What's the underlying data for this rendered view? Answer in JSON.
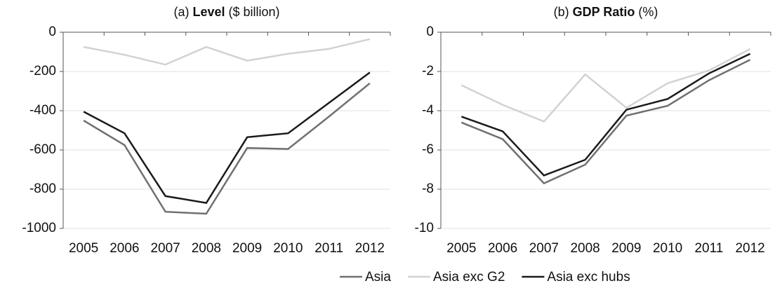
{
  "chart_data": [
    {
      "type": "line",
      "title_prefix": "(a) ",
      "title_bold": "Level",
      "title_suffix": " ($ billion)",
      "categories": [
        "2005",
        "2006",
        "2007",
        "2008",
        "2009",
        "2010",
        "2011",
        "2012"
      ],
      "series": [
        {
          "name": "Asia",
          "color": "#707070",
          "values": [
            -450,
            -575,
            -915,
            -925,
            -590,
            -595,
            -430,
            -260
          ]
        },
        {
          "name": "Asia exc G2",
          "color": "#d2d2d2",
          "values": [
            -75,
            -115,
            -165,
            -75,
            -145,
            -110,
            -85,
            -35
          ]
        },
        {
          "name": "Asia exc hubs",
          "color": "#1a1a1a",
          "values": [
            -405,
            -515,
            -835,
            -870,
            -535,
            -515,
            -360,
            -205
          ]
        }
      ],
      "ylim": [
        -1000,
        0
      ],
      "yticks": [
        -1000,
        -800,
        -600,
        -400,
        -200,
        0
      ],
      "grid": true
    },
    {
      "type": "line",
      "title_prefix": "(b) ",
      "title_bold": "GDP Ratio",
      "title_suffix": " (%)",
      "categories": [
        "2005",
        "2006",
        "2007",
        "2008",
        "2009",
        "2010",
        "2011",
        "2012"
      ],
      "series": [
        {
          "color": "#707070",
          "values": [
            -4.6,
            -5.45,
            -7.7,
            -6.75,
            -4.25,
            -3.75,
            -2.45,
            -1.4
          ]
        },
        {
          "color": "#d2d2d2",
          "values": [
            -2.7,
            -3.7,
            -4.55,
            -2.15,
            -3.85,
            -2.6,
            -1.95,
            -0.85
          ]
        },
        {
          "color": "#1a1a1a",
          "values": [
            -4.3,
            -5.05,
            -7.3,
            -6.5,
            -3.95,
            -3.4,
            -2.1,
            -1.1
          ]
        }
      ],
      "ylim": [
        -10,
        0
      ],
      "yticks": [
        -10,
        -8,
        -6,
        -4,
        -2,
        0
      ],
      "grid": true
    }
  ]
}
